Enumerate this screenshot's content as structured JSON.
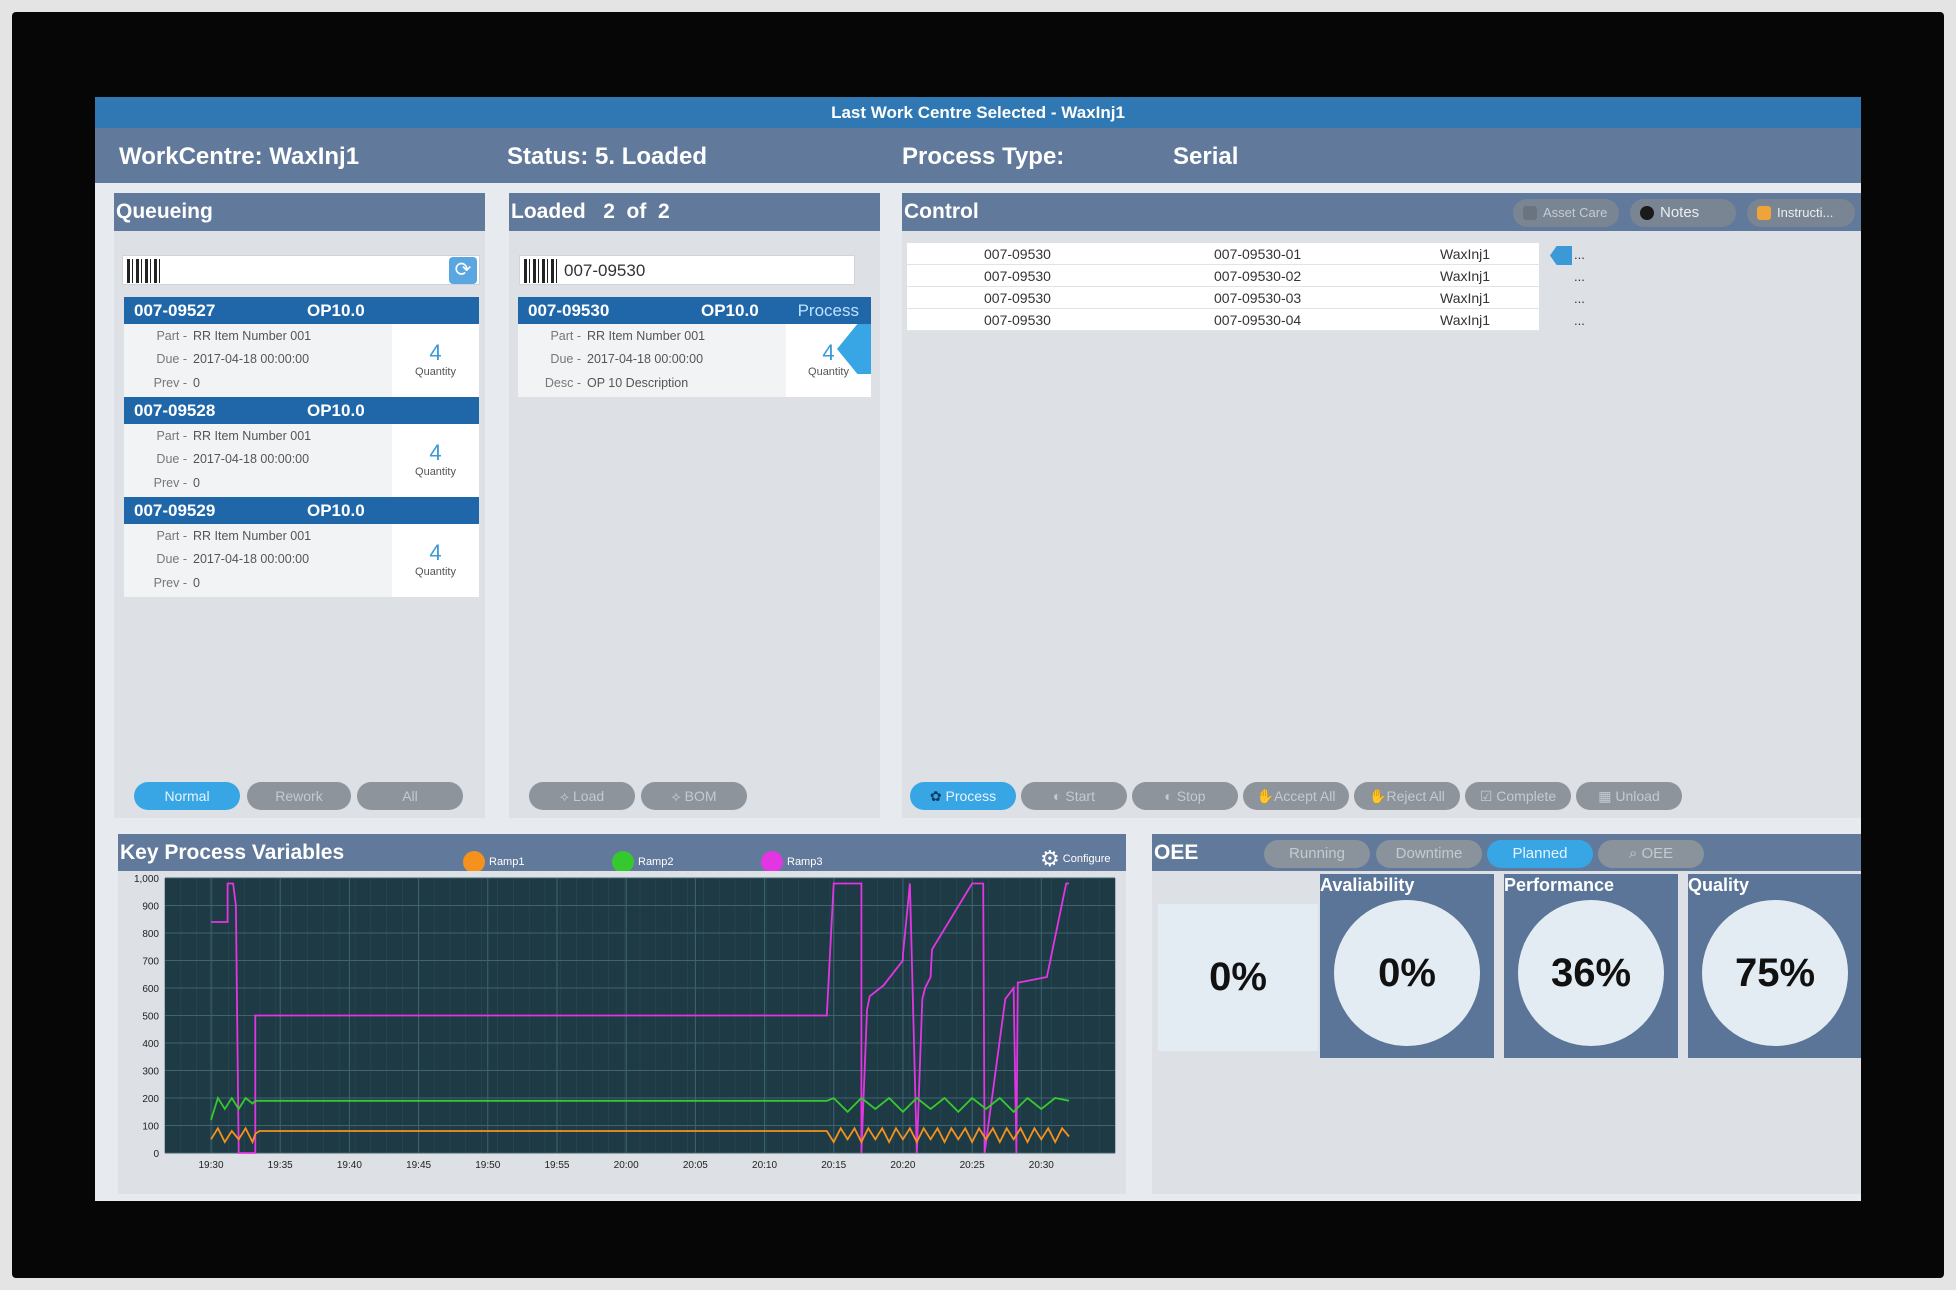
{
  "title_bar": "Last Work Centre Selected - WaxInj1",
  "header": {
    "workcentre": "WorkCentre: WaxInj1",
    "status": "Status: 5. Loaded",
    "process_type_label": "Process Type:",
    "process_type_value": "Serial"
  },
  "queueing": {
    "title": "Queueing",
    "scan_value": "",
    "cards": [
      {
        "id": "007-09527",
        "op": "OP10.0",
        "part_label": "Part -",
        "part": "RR Item Number 001",
        "due_label": "Due -",
        "due": "2017-04-18 00:00:00",
        "prev_label": "Prev -",
        "prev": "0",
        "qty": "4",
        "qty_label": "Quantity"
      },
      {
        "id": "007-09528",
        "op": "OP10.0",
        "part_label": "Part -",
        "part": "RR Item Number 001",
        "due_label": "Due -",
        "due": "2017-04-18 00:00:00",
        "prev_label": "Prev -",
        "prev": "0",
        "qty": "4",
        "qty_label": "Quantity"
      },
      {
        "id": "007-09529",
        "op": "OP10.0",
        "part_label": "Part -",
        "part": "RR Item Number 001",
        "due_label": "Due -",
        "due": "2017-04-18 00:00:00",
        "prev_label": "Prev -",
        "prev": "0",
        "qty": "4",
        "qty_label": "Quantity"
      }
    ],
    "buttons": {
      "normal": "Normal",
      "rework": "Rework",
      "all": "All"
    }
  },
  "loaded": {
    "title": "Loaded",
    "count": "2",
    "of": "of",
    "total": "2",
    "scan_value": "007-09530",
    "card": {
      "id": "007-09530",
      "op": "OP10.0",
      "process": "Process",
      "part_label": "Part -",
      "part": "RR Item Number 001",
      "due_label": "Due -",
      "due": "2017-04-18 00:00:00",
      "desc_label": "Desc -",
      "desc": "OP 10 Description",
      "qty": "4",
      "qty_label": "Quantity"
    },
    "buttons": {
      "load": "Load",
      "bom": "BOM"
    }
  },
  "control": {
    "title": "Control",
    "header_buttons": {
      "asset_care": "Asset Care",
      "notes": "Notes",
      "instructions": "Instructi..."
    },
    "rows": [
      {
        "order": "007-09530",
        "serial": "007-09530-01",
        "wc": "WaxInj1",
        "more": "..."
      },
      {
        "order": "007-09530",
        "serial": "007-09530-02",
        "wc": "WaxInj1",
        "more": "..."
      },
      {
        "order": "007-09530",
        "serial": "007-09530-03",
        "wc": "WaxInj1",
        "more": "..."
      },
      {
        "order": "007-09530",
        "serial": "007-09530-04",
        "wc": "WaxInj1",
        "more": "..."
      }
    ],
    "buttons": {
      "process": "Process",
      "start": "Start",
      "stop": "Stop",
      "accept_all": "Accept All",
      "reject_all": "Reject All",
      "complete": "Complete",
      "unload": "Unload"
    }
  },
  "kpv": {
    "title": "Key Process Variables",
    "configure": "Configure",
    "colors": {
      "ramp1": "#f5921e",
      "ramp2": "#36c92f",
      "ramp3": "#e236e2"
    }
  },
  "chart_data": {
    "type": "line",
    "title": "",
    "xlabel": "",
    "ylabel": "",
    "ylim": [
      0,
      1000
    ],
    "yticks": [
      "0",
      "100",
      "200",
      "300",
      "400",
      "500",
      "600",
      "700",
      "800",
      "900",
      "1,000"
    ],
    "xticks": [
      "19:30",
      "19:35",
      "19:40",
      "19:45",
      "19:50",
      "19:55",
      "20:00",
      "20:05",
      "20:10",
      "20:15",
      "20:20",
      "20:25",
      "20:30"
    ],
    "xlim_minutes": [
      0,
      62
    ],
    "series": [
      {
        "name": "Ramp3",
        "color": "#e236e2",
        "x": [
          0,
          1.2,
          1.2,
          1.6,
          1.8,
          2,
          2.4,
          3.2,
          3.2,
          44.5,
          45,
          45.4,
          45.4,
          47,
          47,
          47.4,
          47.6,
          48.6,
          50,
          50,
          50.5,
          51,
          51.4,
          51.6,
          52,
          52.1,
          55,
          55.5,
          55.7,
          55.8,
          55.9,
          57.4,
          58,
          58.2,
          58.3,
          58.4,
          60.4,
          61.8,
          62
        ],
        "y": [
          840,
          840,
          980,
          980,
          900,
          0,
          0,
          0,
          500,
          500,
          980,
          980,
          980,
          980,
          0,
          520,
          570,
          610,
          700,
          720,
          980,
          0,
          560,
          600,
          640,
          740,
          980,
          980,
          980,
          980,
          0,
          560,
          600,
          0,
          620,
          620,
          640,
          980,
          980
        ]
      },
      {
        "name": "Ramp2",
        "color": "#36c92f",
        "x": [
          0,
          0.5,
          1,
          1.5,
          2,
          2.5,
          3,
          3.2,
          44.5,
          45,
          46,
          47,
          48,
          49,
          50,
          51,
          52,
          53,
          54,
          55,
          56,
          57,
          58,
          59,
          60,
          61,
          62
        ],
        "y": [
          120,
          200,
          160,
          200,
          160,
          200,
          180,
          190,
          190,
          200,
          150,
          200,
          160,
          200,
          150,
          200,
          160,
          200,
          150,
          200,
          160,
          200,
          150,
          200,
          160,
          200,
          190
        ]
      },
      {
        "name": "Ramp1",
        "color": "#f5921e",
        "x": [
          0,
          0.5,
          1,
          1.5,
          2,
          2.5,
          3,
          3.2,
          3.5,
          44.5,
          45,
          45.5,
          46,
          46.5,
          47,
          47.5,
          48,
          48.5,
          49,
          49.5,
          50,
          50.5,
          51,
          51.5,
          52,
          52.5,
          53,
          53.5,
          54,
          54.5,
          55,
          55.5,
          56,
          56.5,
          57,
          57.5,
          58,
          58.5,
          59,
          59.5,
          60,
          60.5,
          61,
          61.5,
          62
        ],
        "y": [
          50,
          90,
          40,
          80,
          50,
          90,
          40,
          70,
          80,
          80,
          40,
          90,
          50,
          90,
          40,
          90,
          50,
          90,
          40,
          90,
          50,
          90,
          40,
          90,
          50,
          90,
          40,
          90,
          50,
          90,
          40,
          90,
          50,
          90,
          40,
          90,
          50,
          90,
          40,
          90,
          50,
          90,
          40,
          90,
          60
        ]
      }
    ]
  },
  "oee": {
    "title": "OEE",
    "tabs": {
      "running": "Running",
      "downtime": "Downtime",
      "planned": "Planned",
      "oee": "OEE"
    },
    "overall": "0%",
    "metrics": [
      {
        "label": "Avaliability",
        "value": "0%"
      },
      {
        "label": "Performance",
        "value": "36%"
      },
      {
        "label": "Quality",
        "value": "75%"
      }
    ]
  }
}
